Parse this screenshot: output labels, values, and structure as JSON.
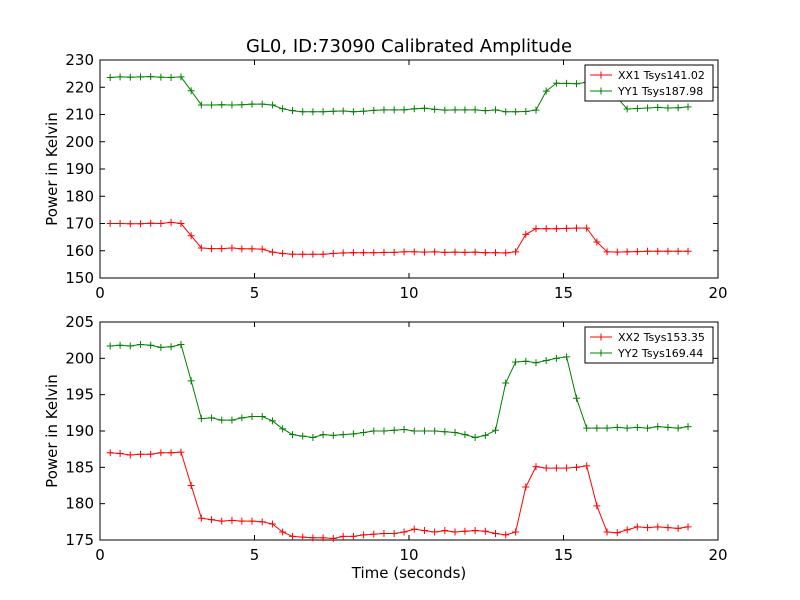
{
  "figure": {
    "title": "GL0, ID:73090 Calibrated Amplitude",
    "xlabel": "Time (seconds)"
  },
  "chart_data": [
    {
      "type": "line",
      "title": "GL0, ID:73090 Calibrated Amplitude",
      "xlabel": "",
      "ylabel": "Power in Kelvin",
      "xlim": [
        0,
        20
      ],
      "ylim": [
        150,
        230
      ],
      "xticks": [
        0,
        5,
        10,
        15,
        20
      ],
      "yticks": [
        150,
        160,
        170,
        180,
        190,
        200,
        210,
        220,
        230
      ],
      "grid": false,
      "legend_position": "top-right",
      "marker": "plus",
      "x": [
        0.33,
        0.65,
        0.98,
        1.31,
        1.64,
        1.97,
        2.3,
        2.62,
        2.95,
        3.28,
        3.61,
        3.94,
        4.27,
        4.59,
        4.92,
        5.25,
        5.58,
        5.91,
        6.23,
        6.56,
        6.89,
        7.22,
        7.55,
        7.87,
        8.2,
        8.53,
        8.86,
        9.19,
        9.52,
        9.84,
        10.17,
        10.5,
        10.83,
        11.16,
        11.49,
        11.81,
        12.14,
        12.47,
        12.8,
        13.13,
        13.45,
        13.78,
        14.11,
        14.44,
        14.77,
        15.1,
        15.42,
        15.75,
        16.08,
        16.41,
        16.74,
        17.06,
        17.39,
        17.72,
        18.05,
        18.38,
        18.71,
        19.03
      ],
      "series": [
        {
          "name": "XX1 Tsys141.02",
          "color": "#ff0000",
          "values": [
            170.0,
            170.0,
            169.9,
            169.9,
            170.1,
            170.0,
            170.4,
            170.0,
            165.5,
            161.0,
            160.8,
            160.8,
            161.0,
            160.7,
            160.7,
            160.6,
            159.5,
            159.0,
            158.7,
            158.7,
            158.7,
            158.7,
            159.0,
            159.2,
            159.3,
            159.3,
            159.3,
            159.4,
            159.4,
            159.6,
            159.6,
            159.5,
            159.6,
            159.4,
            159.5,
            159.4,
            159.5,
            159.3,
            159.3,
            159.2,
            159.6,
            166.0,
            168.1,
            168.1,
            168.1,
            168.2,
            168.3,
            168.3,
            163.2,
            159.6,
            159.5,
            159.6,
            159.7,
            159.8,
            159.8,
            159.8,
            159.8,
            159.8
          ]
        },
        {
          "name": "YY1 Tsys187.98",
          "color": "#008000",
          "values": [
            223.6,
            223.8,
            223.7,
            223.8,
            223.9,
            223.7,
            223.6,
            223.8,
            218.7,
            213.5,
            213.5,
            213.6,
            213.5,
            213.6,
            213.8,
            213.8,
            213.5,
            212.1,
            211.4,
            211.0,
            211.0,
            211.0,
            211.2,
            211.3,
            211.0,
            211.2,
            211.5,
            211.7,
            211.7,
            211.7,
            212.1,
            212.3,
            211.9,
            211.6,
            211.7,
            211.7,
            211.7,
            211.4,
            211.7,
            211.0,
            211.0,
            211.1,
            211.6,
            218.6,
            221.5,
            221.4,
            221.3,
            221.8,
            222.0,
            222.1,
            216.1,
            212.0,
            212.2,
            212.4,
            212.6,
            212.4,
            212.5,
            212.8
          ]
        }
      ]
    },
    {
      "type": "line",
      "title": "",
      "xlabel": "Time (seconds)",
      "ylabel": "Power in Kelvin",
      "xlim": [
        0,
        20
      ],
      "ylim": [
        175,
        205
      ],
      "xticks": [
        0,
        5,
        10,
        15,
        20
      ],
      "yticks": [
        175,
        180,
        185,
        190,
        195,
        200,
        205
      ],
      "grid": false,
      "legend_position": "top-right",
      "marker": "plus",
      "x": [
        0.33,
        0.65,
        0.98,
        1.31,
        1.64,
        1.97,
        2.3,
        2.62,
        2.95,
        3.28,
        3.61,
        3.94,
        4.27,
        4.59,
        4.92,
        5.25,
        5.58,
        5.91,
        6.23,
        6.56,
        6.89,
        7.22,
        7.55,
        7.87,
        8.2,
        8.53,
        8.86,
        9.19,
        9.52,
        9.84,
        10.17,
        10.5,
        10.83,
        11.16,
        11.49,
        11.81,
        12.14,
        12.47,
        12.8,
        13.13,
        13.45,
        13.78,
        14.11,
        14.44,
        14.77,
        15.1,
        15.42,
        15.75,
        16.08,
        16.41,
        16.74,
        17.06,
        17.39,
        17.72,
        18.05,
        18.38,
        18.71,
        19.03
      ],
      "series": [
        {
          "name": "XX2 Tsys153.35",
          "color": "#ff0000",
          "values": [
            187.0,
            186.9,
            186.7,
            186.8,
            186.8,
            187.0,
            187.0,
            187.1,
            182.5,
            178.0,
            177.8,
            177.6,
            177.7,
            177.6,
            177.6,
            177.5,
            177.2,
            176.1,
            175.5,
            175.4,
            175.3,
            175.3,
            175.2,
            175.5,
            175.5,
            175.7,
            175.8,
            175.9,
            175.9,
            176.1,
            176.5,
            176.3,
            176.1,
            176.3,
            176.1,
            176.2,
            176.3,
            176.2,
            175.9,
            175.7,
            176.1,
            182.3,
            185.1,
            184.9,
            184.9,
            184.9,
            185.0,
            185.2,
            179.7,
            176.1,
            176.0,
            176.4,
            176.8,
            176.7,
            176.8,
            176.7,
            176.6,
            176.8
          ]
        },
        {
          "name": "YY2 Tsys169.44",
          "color": "#008000",
          "values": [
            201.7,
            201.8,
            201.7,
            201.9,
            201.8,
            201.5,
            201.6,
            201.9,
            196.9,
            191.7,
            191.8,
            191.5,
            191.5,
            191.8,
            192.0,
            192.0,
            191.4,
            190.3,
            189.5,
            189.3,
            189.1,
            189.5,
            189.4,
            189.5,
            189.6,
            189.8,
            190.0,
            190.0,
            190.1,
            190.2,
            190.0,
            190.0,
            190.0,
            189.9,
            189.8,
            189.5,
            189.1,
            189.4,
            190.1,
            196.6,
            199.5,
            199.6,
            199.4,
            199.7,
            200.0,
            200.2,
            194.5,
            190.4,
            190.4,
            190.4,
            190.5,
            190.4,
            190.5,
            190.4,
            190.6,
            190.5,
            190.4,
            190.6
          ]
        }
      ]
    }
  ]
}
